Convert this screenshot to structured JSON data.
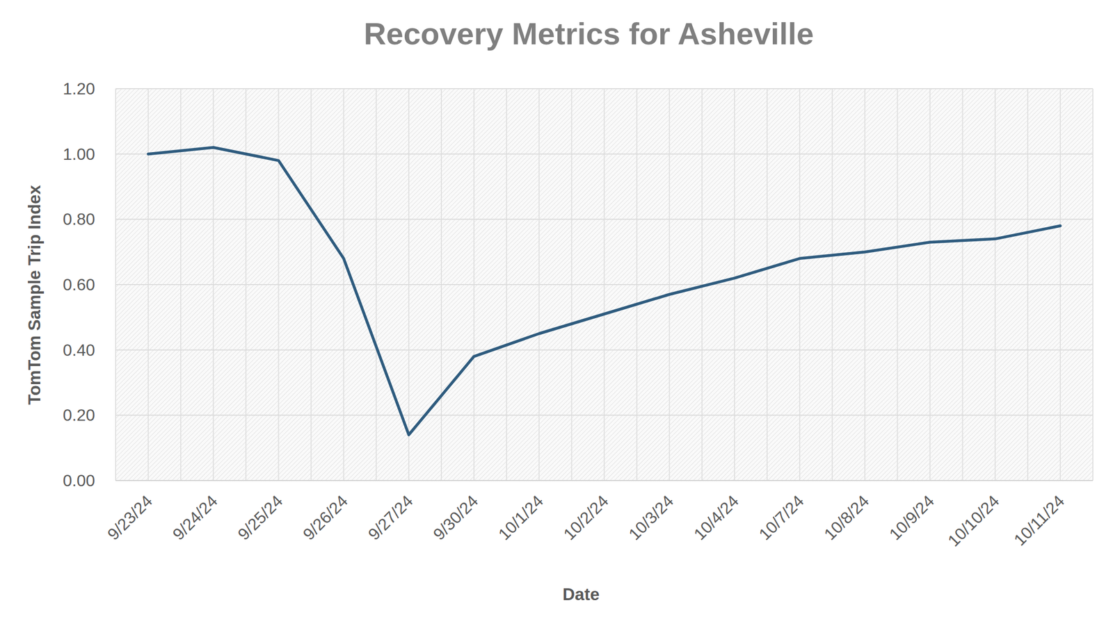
{
  "chart_data": {
    "type": "line",
    "title": "Recovery Metrics for Asheville",
    "x_label": "Date",
    "y_label": "TomTom Sample Trip Index",
    "categories": [
      "9/23/24",
      "9/24/24",
      "9/25/24",
      "9/26/24",
      "9/27/24",
      "9/30/24",
      "10/1/24",
      "10/2/24",
      "10/3/24",
      "10/4/24",
      "10/7/24",
      "10/8/24",
      "10/9/24",
      "10/10/24",
      "10/11/24"
    ],
    "values": [
      1.0,
      1.02,
      0.98,
      0.68,
      0.14,
      0.38,
      0.45,
      0.51,
      0.57,
      0.62,
      0.68,
      0.7,
      0.73,
      0.74,
      0.78
    ],
    "color": "#2e5b7e",
    "ylim": [
      0,
      1.2
    ],
    "yticks": [
      {
        "value": 0,
        "label": "0.00"
      },
      {
        "value": 0.2,
        "label": "0.20"
      },
      {
        "value": 0.4,
        "label": "0.40"
      },
      {
        "value": 0.6,
        "label": "0.60"
      },
      {
        "value": 0.8,
        "label": "0.80"
      },
      {
        "value": 1.0,
        "label": "1.00"
      },
      {
        "value": 1.2,
        "label": "1.20"
      }
    ],
    "grid": true
  }
}
